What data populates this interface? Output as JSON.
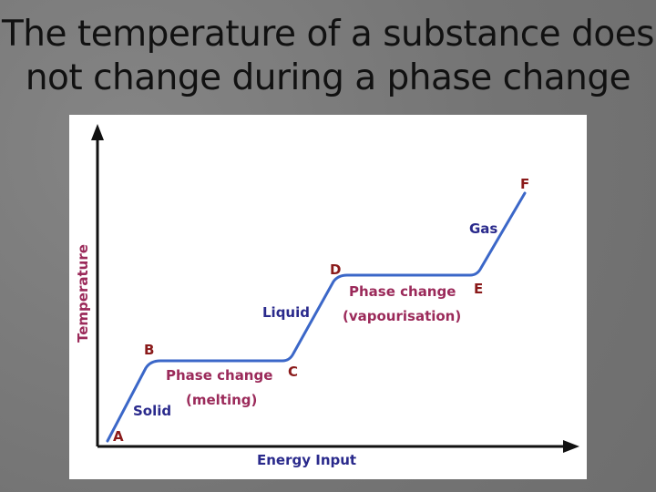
{
  "title": {
    "line1": "The temperature of a substance does",
    "line2": "not change during a phase change"
  },
  "colors": {
    "label": "#2a2a8c",
    "axis_label": "#9b2a5a",
    "point": "#8a1a1a",
    "curve": "#3b67c8"
  },
  "diagram": {
    "y_axis_label": "Temperature",
    "x_axis_label": "Energy Input",
    "points": [
      "A",
      "B",
      "C",
      "D",
      "E",
      "F"
    ],
    "state_labels": {
      "solid": "Solid",
      "liquid": "Liquid",
      "gas": "Gas"
    },
    "phase1": {
      "label": "Phase change",
      "note": "(melting)"
    },
    "phase2": {
      "label": "Phase change",
      "note": "(vapourisation)"
    }
  }
}
